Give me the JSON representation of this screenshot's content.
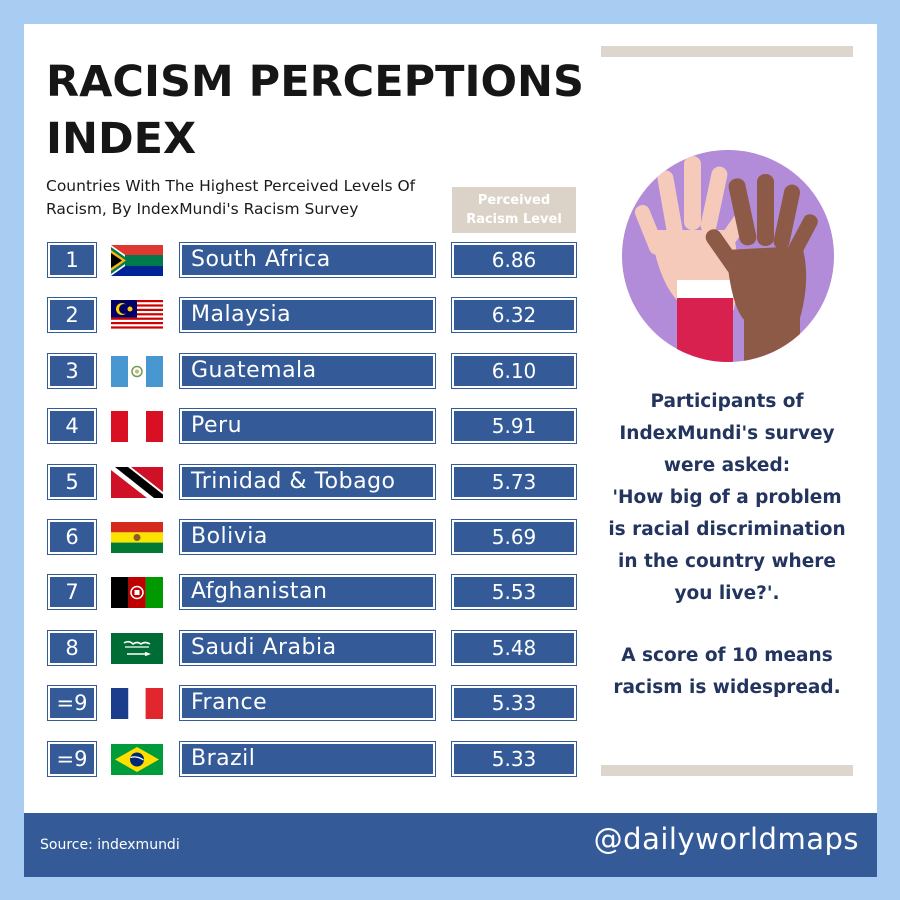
{
  "title": "RACISM PERCEPTIONS INDEX",
  "subtitle": "Countries With The Highest Perceived Levels Of Racism, By IndexMundi's Racism Survey",
  "column_header": "Perceived Racism Level",
  "rows": [
    {
      "rank": "1",
      "country": "South Africa",
      "value": "6.86",
      "flag": "south-africa-flag-icon"
    },
    {
      "rank": "2",
      "country": "Malaysia",
      "value": "6.32",
      "flag": "malaysia-flag-icon"
    },
    {
      "rank": "3",
      "country": "Guatemala",
      "value": "6.10",
      "flag": "guatemala-flag-icon"
    },
    {
      "rank": "4",
      "country": "Peru",
      "value": "5.91",
      "flag": "peru-flag-icon"
    },
    {
      "rank": "5",
      "country": "Trinidad & Tobago",
      "value": "5.73",
      "flag": "trinidad-tobago-flag-icon"
    },
    {
      "rank": "6",
      "country": "Bolivia",
      "value": "5.69",
      "flag": "bolivia-flag-icon"
    },
    {
      "rank": "7",
      "country": "Afghanistan",
      "value": "5.53",
      "flag": "afghanistan-flag-icon"
    },
    {
      "rank": "8",
      "country": "Saudi Arabia",
      "value": "5.48",
      "flag": "saudi-arabia-flag-icon"
    },
    {
      "rank": "=9",
      "country": "France",
      "value": "5.33",
      "flag": "france-flag-icon"
    },
    {
      "rank": "=9",
      "country": "Brazil",
      "value": "5.33",
      "flag": "brazil-flag-icon"
    }
  ],
  "info": {
    "question": "Participants of\nIndexMundi's survey\nwere asked:\n'How big of a problem\nis racial discrimination\nin the country where\nyou live?'.",
    "scale_note": "A score of 10 means\nracism is widespread."
  },
  "footer": {
    "source": "Source: indexmundi",
    "handle": "@dailyworldmaps"
  },
  "colors": {
    "background": "#a9cdf2",
    "accent_blue": "#345b97",
    "beige": "#ddd6cd",
    "purple": "#b28bd9",
    "info_text": "#23345e"
  }
}
